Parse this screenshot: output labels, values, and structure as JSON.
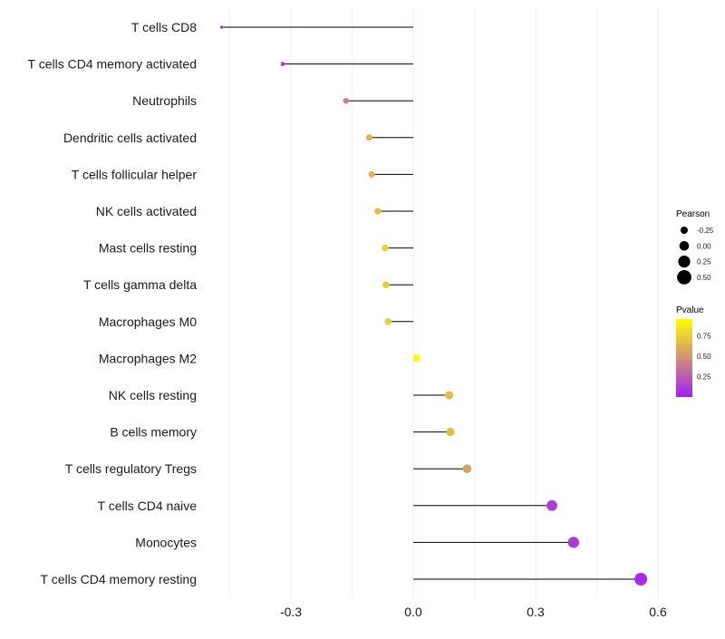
{
  "chart_data": {
    "type": "lollipop",
    "xlim": [
      -0.45,
      0.6
    ],
    "x_ticks": [
      -0.3,
      0.0,
      0.3,
      0.6
    ],
    "x_tick_labels": [
      "-0.3",
      "0.0",
      "0.3",
      "0.6"
    ],
    "categories": [
      "T cells CD8",
      "T cells CD4 memory activated",
      "Neutrophils",
      "Dendritic cells activated",
      "T cells follicular helper",
      "NK cells activated",
      "Mast cells resting",
      "T cells gamma delta",
      "Macrophages M0",
      "Macrophages M2",
      "NK cells resting",
      "B cells memory",
      "T cells regulatory  Tregs ",
      "T cells CD4 naive",
      "Monocytes",
      "T cells CD4 memory resting"
    ],
    "pearson": [
      -0.47,
      -0.32,
      -0.165,
      -0.108,
      -0.102,
      -0.087,
      -0.069,
      -0.067,
      -0.062,
      0.008,
      0.088,
      0.091,
      0.132,
      0.34,
      0.393,
      0.558
    ],
    "pvalue": [
      0.05,
      0.18,
      0.45,
      0.66,
      0.68,
      0.71,
      0.78,
      0.78,
      0.8,
      0.98,
      0.7,
      0.7,
      0.58,
      0.13,
      0.12,
      0.05
    ],
    "legend_size": {
      "title": "Pearson",
      "labels": [
        "-0.25",
        "0.00",
        "0.25",
        "0.50"
      ],
      "values": [
        -0.25,
        0.0,
        0.25,
        0.5
      ]
    },
    "legend_color": {
      "title": "Pvalue",
      "labels": [
        "0.75",
        "0.50",
        "0.25"
      ],
      "values": [
        0.75,
        0.5,
        0.25
      ],
      "low_color": "#a020f0",
      "high_color": "#ffff00"
    },
    "line_color": "#000000",
    "grid": true
  }
}
